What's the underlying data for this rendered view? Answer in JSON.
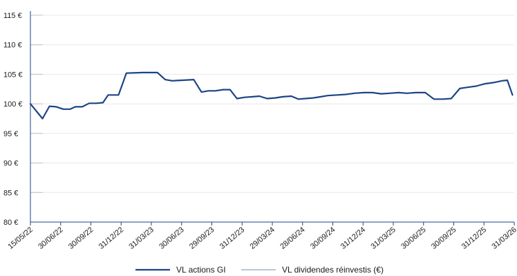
{
  "colors": {
    "series_primary": "#1b4486",
    "series_secondary": "#a6b0cc",
    "grid": "#e8e8e8",
    "axis": "#1b4486"
  },
  "chart_data": {
    "type": "line",
    "title": "",
    "xlabel": "",
    "ylabel": "",
    "ylim": [
      80,
      115
    ],
    "y_ticks": [
      {
        "value": 80,
        "label": "80 €"
      },
      {
        "value": 85,
        "label": "85 €"
      },
      {
        "value": 90,
        "label": "90 €"
      },
      {
        "value": 95,
        "label": "95 €"
      },
      {
        "value": 100,
        "label": "100 €"
      },
      {
        "value": 105,
        "label": "105 €"
      },
      {
        "value": 110,
        "label": "110 €"
      },
      {
        "value": 115,
        "label": "115 €"
      }
    ],
    "x_ticks": [
      "15/05/22",
      "30/06/22",
      "30/09/22",
      "31/12/22",
      "31/03/23",
      "30/06/23",
      "29/09/23",
      "31/12/23",
      "29/03/24",
      "28/06/24",
      "30/09/24",
      "31/12/24",
      "31/03/25",
      "30/06/25",
      "30/09/25",
      "31/12/25",
      "31/03/26"
    ],
    "grid": "horizontal",
    "legend_position": "bottom",
    "series": [
      {
        "name": "VL actions GI",
        "values": [
          [
            0,
            100.0
          ],
          [
            1.4,
            97.5
          ],
          [
            2.2,
            99.6
          ],
          [
            3.0,
            99.5
          ],
          [
            3.8,
            99.1
          ],
          [
            4.6,
            99.1
          ],
          [
            5.2,
            99.5
          ],
          [
            6.0,
            99.5
          ],
          [
            6.8,
            100.1
          ],
          [
            7.6,
            100.1
          ],
          [
            8.4,
            100.2
          ],
          [
            9.0,
            101.5
          ],
          [
            10.2,
            101.5
          ],
          [
            11.1,
            105.2
          ],
          [
            13.0,
            105.3
          ],
          [
            14.7,
            105.3
          ],
          [
            15.6,
            104.1
          ],
          [
            16.4,
            103.9
          ],
          [
            17.6,
            104.0
          ],
          [
            18.9,
            104.1
          ],
          [
            19.8,
            102.0
          ],
          [
            20.6,
            102.2
          ],
          [
            21.4,
            102.2
          ],
          [
            22.3,
            102.4
          ],
          [
            23.1,
            102.4
          ],
          [
            23.9,
            100.9
          ],
          [
            24.8,
            101.1
          ],
          [
            25.7,
            101.2
          ],
          [
            26.5,
            101.3
          ],
          [
            27.4,
            100.9
          ],
          [
            28.3,
            101.0
          ],
          [
            29.2,
            101.2
          ],
          [
            30.2,
            101.3
          ],
          [
            31.0,
            100.8
          ],
          [
            31.8,
            100.9
          ],
          [
            32.7,
            101.0
          ],
          [
            33.6,
            101.2
          ],
          [
            34.4,
            101.4
          ],
          [
            35.5,
            101.5
          ],
          [
            36.5,
            101.6
          ],
          [
            37.5,
            101.8
          ],
          [
            38.6,
            101.9
          ],
          [
            39.6,
            101.9
          ],
          [
            40.6,
            101.7
          ],
          [
            41.6,
            101.8
          ],
          [
            42.6,
            101.9
          ],
          [
            43.6,
            101.8
          ],
          [
            44.6,
            101.9
          ],
          [
            45.7,
            101.9
          ],
          [
            46.7,
            100.8
          ],
          [
            47.7,
            100.8
          ],
          [
            48.7,
            100.9
          ],
          [
            49.7,
            102.6
          ],
          [
            50.6,
            102.8
          ],
          [
            51.6,
            103.0
          ],
          [
            52.6,
            103.4
          ],
          [
            53.6,
            103.6
          ],
          [
            54.6,
            103.9
          ],
          [
            55.2,
            104.0
          ],
          [
            55.8,
            101.5
          ]
        ]
      },
      {
        "name": "VL dividendes réinvestis (€)",
        "values": []
      }
    ]
  }
}
